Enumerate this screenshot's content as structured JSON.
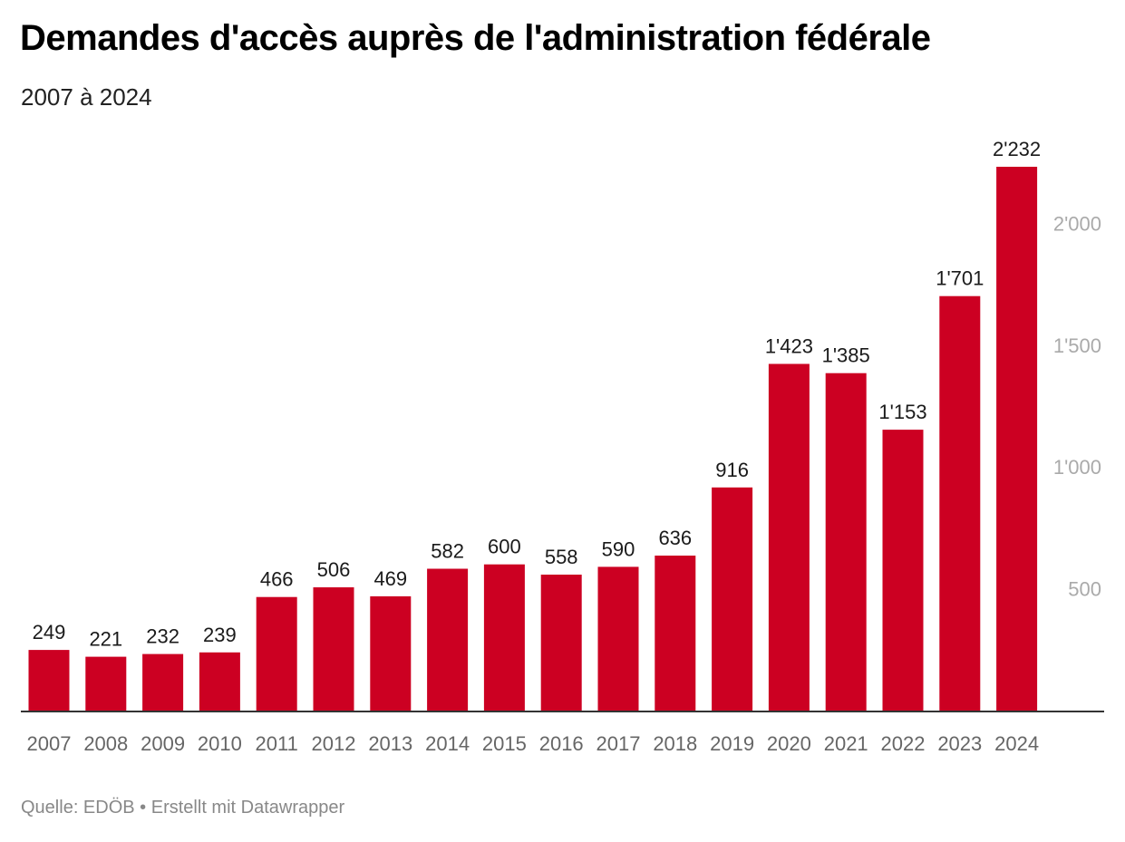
{
  "title": "Demandes d'accès auprès de l'administration fédérale",
  "subtitle": "2007 à 2024",
  "footer": {
    "source": "Quelle: EDÖB",
    "separator": "•",
    "credit": "Erstellt mit Datawrapper"
  },
  "colors": {
    "bar": "#cc0022",
    "axis": "#333333",
    "x_tick": "#666666",
    "y_tick": "#aaaaaa"
  },
  "chart_data": {
    "type": "bar",
    "title": "Demandes d'accès auprès de l'administration fédérale",
    "subtitle": "2007 à 2024",
    "xlabel": "",
    "ylabel": "",
    "categories": [
      "2007",
      "2008",
      "2009",
      "2010",
      "2011",
      "2012",
      "2013",
      "2014",
      "2015",
      "2016",
      "2017",
      "2018",
      "2019",
      "2020",
      "2021",
      "2022",
      "2023",
      "2024"
    ],
    "values": [
      249,
      221,
      232,
      239,
      466,
      506,
      469,
      582,
      600,
      558,
      590,
      636,
      916,
      1423,
      1385,
      1153,
      1701,
      2232
    ],
    "value_labels": [
      "249",
      "221",
      "232",
      "239",
      "466",
      "506",
      "469",
      "582",
      "600",
      "558",
      "590",
      "636",
      "916",
      "1'423",
      "1'385",
      "1'153",
      "1'701",
      "2'232"
    ],
    "y_ticks": [
      500,
      1000,
      1500,
      2000
    ],
    "y_tick_labels": [
      "500",
      "1'000",
      "1'500",
      "2'000"
    ],
    "ylim": [
      0,
      2232
    ],
    "y_axis_position": "right",
    "grid": false
  }
}
